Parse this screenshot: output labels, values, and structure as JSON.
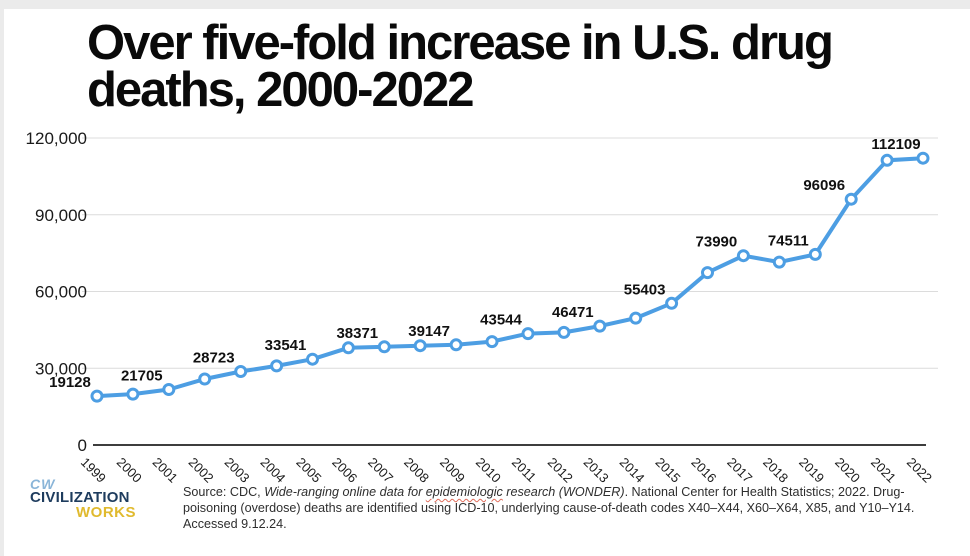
{
  "title": {
    "lines": [
      "Over five-fold increase in U.S. drug",
      "deaths, 2000-2022"
    ]
  },
  "chart_data": {
    "type": "line",
    "title": "Over five-fold increase in U.S. drug deaths, 2000-2022",
    "x": [
      1999,
      2000,
      2001,
      2002,
      2003,
      2004,
      2005,
      2006,
      2007,
      2008,
      2009,
      2010,
      2011,
      2012,
      2013,
      2014,
      2015,
      2016,
      2017,
      2018,
      2019,
      2020,
      2021,
      2022
    ],
    "values": [
      19128,
      19900,
      21705,
      25800,
      28723,
      30900,
      33541,
      38000,
      38371,
      38800,
      39147,
      40400,
      43544,
      44000,
      46471,
      49600,
      55403,
      67400,
      73990,
      71500,
      74511,
      96096,
      111300,
      112109
    ],
    "point_labels": [
      "19128",
      null,
      "21705",
      null,
      "28723",
      null,
      "33541",
      null,
      "38371",
      null,
      "39147",
      null,
      "43544",
      null,
      "46471",
      null,
      "55403",
      null,
      "73990",
      null,
      "74511",
      "96096",
      null,
      "112109"
    ],
    "y_ticks": [
      {
        "v": 0,
        "label": "0"
      },
      {
        "v": 30000,
        "label": "30,000"
      },
      {
        "v": 60000,
        "label": "60,000"
      },
      {
        "v": 90000,
        "label": "90,000"
      },
      {
        "v": 120000,
        "label": "120,000"
      }
    ],
    "ylim": [
      0,
      120000
    ],
    "xlabel": "",
    "ylabel": "",
    "grid": true,
    "legend": "none",
    "line_color": "#4d9ee3",
    "marker_fill": "#ffffff",
    "grid_color": "#dcdcdc",
    "axis_color": "#3d3d3d"
  },
  "logo": {
    "mark": "CW",
    "name_top": "CIVILIZATION",
    "name_bottom": "WORKS",
    "mark_color": "#8ab5d8",
    "name_top_color": "#1e3c5e",
    "name_bottom_color": "#e0ba2e"
  },
  "source": {
    "lines": [
      [
        {
          "t": "Source: CDC, ",
          "style": ""
        },
        {
          "t": "Wide-ranging online data for ",
          "style": "it"
        },
        {
          "t": "epidemiologic",
          "style": "it sp"
        },
        {
          "t": " research (WONDER)",
          "style": "it"
        },
        {
          "t": ". National Center for Health Statistics; 2022. Drug-",
          "style": ""
        }
      ],
      [
        {
          "t": "poisoning (overdose) deaths are identified using ICD-10, underlying cause-of-death codes X40–X44, X60–X64, X85, and Y10–Y14.",
          "style": ""
        }
      ],
      [
        {
          "t": "Accessed 9.12.24.",
          "style": ""
        }
      ]
    ]
  }
}
